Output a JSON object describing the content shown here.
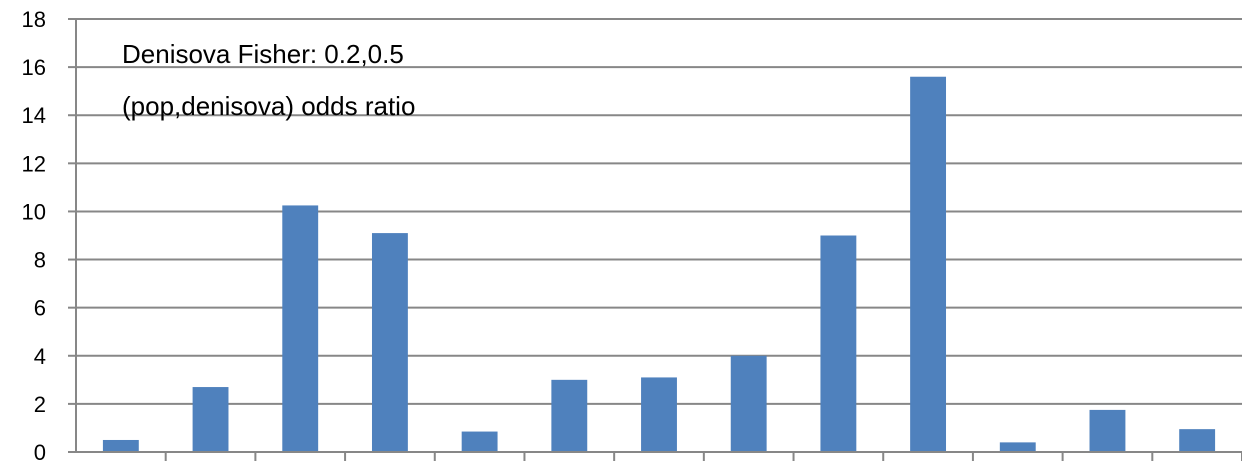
{
  "chart_data": {
    "type": "bar",
    "title_lines": [
      "Denisova Fisher: 0.2,0.5",
      "(pop,denisova) odds ratio"
    ],
    "categories": [
      "",
      "",
      "",
      "",
      "",
      "",
      "",
      "",
      "",
      "",
      "",
      "",
      ""
    ],
    "values": [
      0.5,
      2.7,
      10.25,
      9.1,
      0.85,
      3.0,
      3.1,
      4.0,
      9.0,
      15.6,
      0.4,
      1.75,
      0.95
    ],
    "ylim": [
      0,
      18
    ],
    "yticks": [
      "0",
      "2",
      "4",
      "6",
      "8",
      "10",
      "12",
      "14",
      "16",
      "18"
    ],
    "grid": true,
    "colors": {
      "bar": "#4F81BD",
      "grid": "#878787",
      "axis": "#878787"
    }
  }
}
